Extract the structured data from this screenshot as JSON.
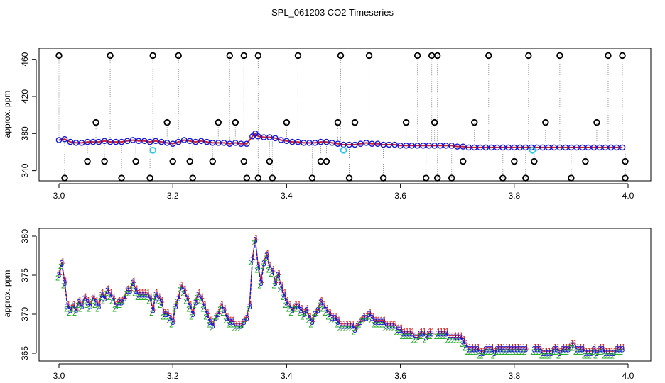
{
  "chart_data": [
    {
      "type": "scatter",
      "title": "SPL_061203  CO2 Timeseries",
      "xlabel": "",
      "ylabel": "approx. ppm",
      "xlim": [
        3.0,
        4.0
      ],
      "ylim": [
        329,
        472
      ],
      "x_ticks": [
        3.0,
        3.2,
        3.4,
        3.6,
        3.8,
        4.0
      ],
      "y_ticks": [
        340,
        380,
        420,
        460
      ],
      "x_tick_labels": [
        "3.0",
        "3.2",
        "3.4",
        "3.6",
        "3.8",
        "4.0"
      ],
      "y_tick_labels": [
        "340",
        "380",
        "420",
        "460"
      ],
      "colors": {
        "main": "#1515dd",
        "accent": "#d62020",
        "cyan": "#22c8e8",
        "outlier": "#000000",
        "connector": "#8a8a8a"
      },
      "main_series": [
        [
          3.0,
          373
        ],
        [
          3.01,
          374
        ],
        [
          3.02,
          371
        ],
        [
          3.03,
          370
        ],
        [
          3.04,
          370
        ],
        [
          3.05,
          371
        ],
        [
          3.06,
          371
        ],
        [
          3.07,
          371
        ],
        [
          3.08,
          372
        ],
        [
          3.09,
          371
        ],
        [
          3.1,
          371
        ],
        [
          3.11,
          371
        ],
        [
          3.12,
          372
        ],
        [
          3.13,
          373
        ],
        [
          3.14,
          372
        ],
        [
          3.15,
          372
        ],
        [
          3.16,
          371
        ],
        [
          3.17,
          372
        ],
        [
          3.18,
          371
        ],
        [
          3.19,
          370
        ],
        [
          3.2,
          369
        ],
        [
          3.21,
          371
        ],
        [
          3.22,
          373
        ],
        [
          3.23,
          372
        ],
        [
          3.24,
          371
        ],
        [
          3.25,
          372
        ],
        [
          3.26,
          371
        ],
        [
          3.27,
          370
        ],
        [
          3.28,
          370
        ],
        [
          3.29,
          370
        ],
        [
          3.3,
          369
        ],
        [
          3.31,
          370
        ],
        [
          3.32,
          369
        ],
        [
          3.33,
          369
        ],
        [
          3.34,
          377
        ],
        [
          3.345,
          380
        ],
        [
          3.35,
          377
        ],
        [
          3.36,
          376
        ],
        [
          3.37,
          376
        ],
        [
          3.38,
          375
        ],
        [
          3.39,
          373
        ],
        [
          3.4,
          372
        ],
        [
          3.41,
          371
        ],
        [
          3.42,
          371
        ],
        [
          3.43,
          370
        ],
        [
          3.44,
          370
        ],
        [
          3.45,
          370
        ],
        [
          3.46,
          371
        ],
        [
          3.47,
          371
        ],
        [
          3.48,
          370
        ],
        [
          3.49,
          369
        ],
        [
          3.5,
          368
        ],
        [
          3.51,
          368
        ],
        [
          3.52,
          368
        ],
        [
          3.53,
          369
        ],
        [
          3.54,
          370
        ],
        [
          3.55,
          369
        ],
        [
          3.56,
          369
        ],
        [
          3.57,
          368
        ],
        [
          3.58,
          368
        ],
        [
          3.59,
          368
        ],
        [
          3.6,
          367
        ],
        [
          3.61,
          367
        ],
        [
          3.62,
          367
        ],
        [
          3.63,
          367
        ],
        [
          3.64,
          367
        ],
        [
          3.65,
          367
        ],
        [
          3.66,
          367
        ],
        [
          3.67,
          367
        ],
        [
          3.68,
          367
        ],
        [
          3.69,
          367
        ],
        [
          3.7,
          366
        ],
        [
          3.71,
          366
        ],
        [
          3.72,
          365
        ],
        [
          3.73,
          365
        ],
        [
          3.74,
          365
        ],
        [
          3.75,
          365
        ],
        [
          3.76,
          365
        ],
        [
          3.77,
          365
        ],
        [
          3.78,
          365
        ],
        [
          3.79,
          365
        ],
        [
          3.8,
          365
        ],
        [
          3.81,
          365
        ],
        [
          3.82,
          365
        ],
        [
          3.83,
          365
        ],
        [
          3.84,
          365
        ],
        [
          3.85,
          365
        ],
        [
          3.86,
          365
        ],
        [
          3.87,
          365
        ],
        [
          3.88,
          365
        ],
        [
          3.89,
          365
        ],
        [
          3.9,
          365
        ],
        [
          3.91,
          365
        ],
        [
          3.92,
          365
        ],
        [
          3.93,
          365
        ],
        [
          3.94,
          365
        ],
        [
          3.95,
          365
        ],
        [
          3.96,
          365
        ],
        [
          3.97,
          365
        ],
        [
          3.98,
          365
        ],
        [
          3.99,
          365
        ]
      ],
      "outliers": [
        [
          3.0,
          464
        ],
        [
          3.01,
          332
        ],
        [
          3.05,
          350
        ],
        [
          3.065,
          392
        ],
        [
          3.08,
          350
        ],
        [
          3.09,
          464
        ],
        [
          3.11,
          332
        ],
        [
          3.135,
          350
        ],
        [
          3.16,
          332
        ],
        [
          3.165,
          464
        ],
        [
          3.19,
          392
        ],
        [
          3.2,
          350
        ],
        [
          3.21,
          464
        ],
        [
          3.23,
          350
        ],
        [
          3.235,
          332
        ],
        [
          3.27,
          350
        ],
        [
          3.28,
          392
        ],
        [
          3.3,
          464
        ],
        [
          3.31,
          392
        ],
        [
          3.325,
          464
        ],
        [
          3.325,
          350
        ],
        [
          3.33,
          332
        ],
        [
          3.35,
          332
        ],
        [
          3.35,
          464
        ],
        [
          3.37,
          350
        ],
        [
          3.375,
          332
        ],
        [
          3.4,
          392
        ],
        [
          3.42,
          464
        ],
        [
          3.445,
          332
        ],
        [
          3.46,
          350
        ],
        [
          3.47,
          350
        ],
        [
          3.49,
          392
        ],
        [
          3.495,
          464
        ],
        [
          3.51,
          332
        ],
        [
          3.52,
          392
        ],
        [
          3.545,
          464
        ],
        [
          3.57,
          332
        ],
        [
          3.61,
          392
        ],
        [
          3.63,
          464
        ],
        [
          3.645,
          332
        ],
        [
          3.655,
          464
        ],
        [
          3.66,
          392
        ],
        [
          3.665,
          332
        ],
        [
          3.665,
          464
        ],
        [
          3.69,
          332
        ],
        [
          3.71,
          350
        ],
        [
          3.73,
          392
        ],
        [
          3.755,
          464
        ],
        [
          3.78,
          332
        ],
        [
          3.8,
          350
        ],
        [
          3.82,
          332
        ],
        [
          3.825,
          464
        ],
        [
          3.835,
          350
        ],
        [
          3.855,
          392
        ],
        [
          3.88,
          464
        ],
        [
          3.9,
          332
        ],
        [
          3.925,
          350
        ],
        [
          3.945,
          392
        ],
        [
          3.965,
          464
        ],
        [
          3.99,
          464
        ],
        [
          3.995,
          350
        ],
        [
          3.995,
          332
        ]
      ],
      "cyan_points": [
        [
          3.165,
          362
        ],
        [
          3.5,
          362
        ],
        [
          3.832,
          362
        ]
      ]
    },
    {
      "type": "line",
      "title": "",
      "xlabel": "",
      "ylabel": "approx. ppm",
      "xlim": [
        3.0,
        4.0
      ],
      "ylim": [
        364,
        381
      ],
      "x_ticks": [
        3.0,
        3.2,
        3.4,
        3.6,
        3.8,
        4.0
      ],
      "y_ticks": [
        365,
        370,
        375,
        380
      ],
      "x_tick_labels": [
        "3.0",
        "3.2",
        "3.4",
        "3.6",
        "3.8",
        "4.0"
      ],
      "y_tick_labels": [
        "365",
        "370",
        "375",
        "380"
      ],
      "series": [
        {
          "symbol": "1",
          "color": "#d62020"
        },
        {
          "symbol": "2",
          "color": "#18a818"
        },
        {
          "symbol": "3",
          "color": "#1a1ad8"
        }
      ],
      "x": [
        3.0,
        3.005,
        3.01,
        3.015,
        3.02,
        3.025,
        3.03,
        3.035,
        3.04,
        3.045,
        3.05,
        3.055,
        3.06,
        3.065,
        3.07,
        3.075,
        3.08,
        3.085,
        3.09,
        3.095,
        3.1,
        3.105,
        3.11,
        3.115,
        3.12,
        3.125,
        3.13,
        3.135,
        3.14,
        3.145,
        3.15,
        3.155,
        3.16,
        3.165,
        3.17,
        3.175,
        3.18,
        3.185,
        3.19,
        3.195,
        3.2,
        3.205,
        3.21,
        3.215,
        3.22,
        3.225,
        3.23,
        3.235,
        3.24,
        3.245,
        3.25,
        3.255,
        3.26,
        3.265,
        3.27,
        3.275,
        3.28,
        3.285,
        3.29,
        3.295,
        3.3,
        3.305,
        3.31,
        3.315,
        3.32,
        3.325,
        3.33,
        3.335,
        3.34,
        3.345,
        3.35,
        3.355,
        3.36,
        3.365,
        3.37,
        3.375,
        3.38,
        3.385,
        3.39,
        3.395,
        3.4,
        3.405,
        3.41,
        3.415,
        3.42,
        3.425,
        3.43,
        3.435,
        3.44,
        3.445,
        3.45,
        3.455,
        3.46,
        3.465,
        3.47,
        3.475,
        3.48,
        3.485,
        3.49,
        3.495,
        3.5,
        3.505,
        3.51,
        3.515,
        3.52,
        3.525,
        3.53,
        3.535,
        3.54,
        3.545,
        3.55,
        3.555,
        3.56,
        3.565,
        3.57,
        3.575,
        3.58,
        3.585,
        3.59,
        3.595,
        3.6,
        3.605,
        3.61,
        3.615,
        3.62,
        3.625,
        3.63,
        3.635,
        3.64,
        3.645,
        3.65,
        3.655,
        null,
        3.665,
        3.67,
        3.675,
        3.68,
        3.685,
        3.69,
        3.695,
        3.7,
        3.705,
        3.71,
        3.715,
        3.72,
        3.725,
        3.73,
        3.735,
        3.74,
        3.745,
        3.75,
        3.755,
        3.76,
        3.765,
        3.77,
        3.775,
        3.78,
        3.785,
        3.79,
        3.795,
        3.8,
        3.805,
        3.81,
        3.815,
        3.82,
        null,
        3.835,
        3.84,
        3.845,
        3.85,
        3.855,
        3.86,
        3.865,
        3.87,
        3.875,
        3.88,
        3.885,
        3.89,
        3.895,
        3.9,
        3.905,
        3.91,
        3.915,
        3.92,
        3.925,
        3.93,
        3.935,
        3.94,
        3.945,
        3.95,
        3.955,
        3.96,
        3.965,
        3.97,
        3.975,
        3.98,
        3.985,
        3.99
      ],
      "y": [
        375.0,
        376.5,
        374.0,
        371.0,
        370.5,
        371.0,
        370.5,
        371.5,
        371.0,
        372.0,
        371.5,
        371.0,
        372.0,
        371.5,
        371.0,
        372.5,
        372.0,
        373.0,
        372.5,
        372.0,
        371.0,
        371.5,
        371.5,
        372.0,
        373.0,
        373.0,
        374.0,
        373.0,
        372.5,
        372.5,
        372.5,
        372.5,
        372.0,
        370.5,
        372.5,
        372.0,
        371.5,
        370.0,
        370.0,
        369.5,
        369.0,
        371.0,
        372.0,
        373.5,
        373.0,
        372.0,
        371.0,
        370.0,
        371.5,
        372.5,
        372.0,
        371.0,
        370.0,
        369.0,
        368.5,
        369.5,
        370.0,
        371.0,
        370.5,
        369.5,
        369.0,
        369.0,
        368.5,
        368.5,
        368.5,
        369.0,
        369.5,
        371.0,
        377.0,
        379.5,
        376.0,
        374.0,
        376.5,
        377.5,
        376.0,
        375.5,
        374.0,
        375.0,
        373.5,
        372.5,
        371.5,
        371.0,
        370.5,
        371.0,
        371.0,
        370.5,
        370.0,
        370.5,
        369.5,
        369.0,
        370.0,
        370.5,
        371.5,
        371.0,
        370.5,
        370.0,
        369.5,
        369.5,
        369.0,
        368.5,
        368.5,
        368.5,
        368.5,
        368.5,
        368.0,
        368.5,
        369.0,
        369.5,
        369.5,
        370.0,
        369.5,
        369.0,
        369.0,
        369.0,
        369.0,
        368.5,
        368.5,
        368.5,
        368.5,
        368.0,
        368.0,
        367.5,
        367.5,
        367.5,
        367.5,
        367.0,
        367.0,
        367.5,
        367.5,
        367.0,
        367.5,
        367.5,
        null,
        367.5,
        367.5,
        367.5,
        367.5,
        367.0,
        367.0,
        367.0,
        367.0,
        367.0,
        366.5,
        366.0,
        365.5,
        365.5,
        365.5,
        365.5,
        365.0,
        365.0,
        365.5,
        365.5,
        365.5,
        365.0,
        365.5,
        365.5,
        365.5,
        365.5,
        365.5,
        365.5,
        365.5,
        365.5,
        365.5,
        365.5,
        365.5,
        null,
        365.5,
        365.5,
        365.5,
        365.0,
        365.0,
        365.0,
        365.0,
        365.5,
        365.5,
        365.0,
        365.5,
        365.5,
        365.5,
        366.0,
        366.0,
        365.5,
        365.5,
        365.5,
        365.0,
        365.0,
        365.0,
        365.5,
        365.0,
        365.5,
        365.5,
        365.0,
        365.0,
        365.0,
        365.0,
        365.5,
        365.5,
        365.5
      ]
    }
  ]
}
